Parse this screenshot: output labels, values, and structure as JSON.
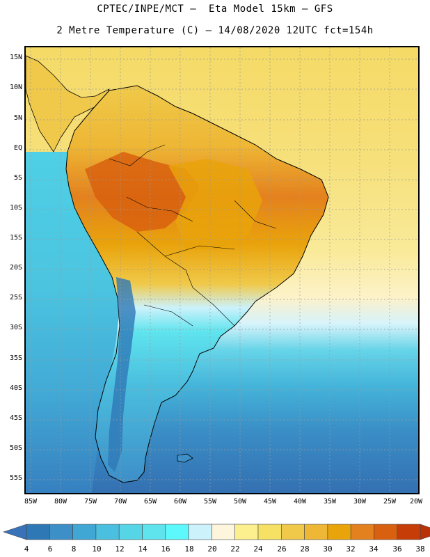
{
  "header": {
    "line1": "CPTEC/INPE/MCT –  Eta Model 15km – GFS",
    "line2": "2 Metre Temperature (C) – 14/08/2020 12UTC fct=154h"
  },
  "map": {
    "lat_labels": [
      "15N",
      "10N",
      "5N",
      "EQ",
      "5S",
      "10S",
      "15S",
      "20S",
      "25S",
      "30S",
      "35S",
      "40S",
      "45S",
      "50S",
      "55S"
    ],
    "lon_labels": [
      "85W",
      "80W",
      "75W",
      "70W",
      "65W",
      "60W",
      "55W",
      "50W",
      "45W",
      "40W",
      "35W",
      "30W",
      "25W",
      "20W"
    ],
    "colors": {
      "ocean_north": "#f5da66",
      "ocean_cream": "#fdf6dc",
      "land_border": "#000000",
      "gridline": "#9a9a9a"
    }
  },
  "legend": {
    "labels": [
      "4",
      "6",
      "8",
      "10",
      "12",
      "14",
      "16",
      "18",
      "20",
      "22",
      "24",
      "26",
      "28",
      "30",
      "32",
      "34",
      "36",
      "38"
    ],
    "colors": [
      "#3a72b9",
      "#2e78b6",
      "#3d8fc8",
      "#40a6d4",
      "#4bbfdf",
      "#56d5e6",
      "#5fe4ee",
      "#5df8fb",
      "#ccf2fb",
      "#fdf6dc",
      "#fbef8e",
      "#f6e165",
      "#f0c94a",
      "#eeb735",
      "#e9a30b",
      "#e3811e",
      "#d8600e",
      "#c63d07",
      "#b83306"
    ]
  }
}
